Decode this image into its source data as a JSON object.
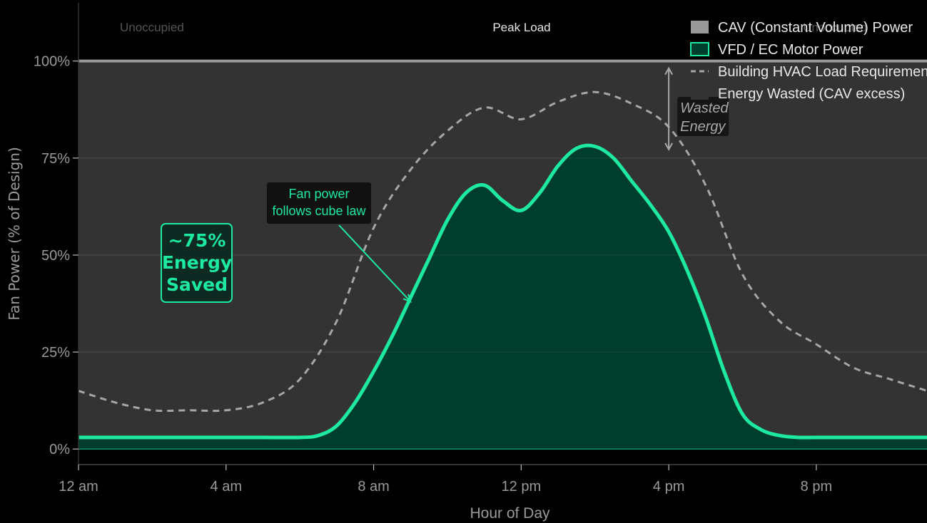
{
  "chart_data": {
    "type": "area",
    "xlabel": "Hour of Day",
    "ylabel": "Fan Power (% of Design)",
    "xlim": [
      0,
      23
    ],
    "ylim": [
      -4,
      115
    ],
    "x_ticks": [
      {
        "x": 0,
        "label": "12 am"
      },
      {
        "x": 4,
        "label": "4 am"
      },
      {
        "x": 8,
        "label": "8 am"
      },
      {
        "x": 12,
        "label": "12 pm"
      },
      {
        "x": 16,
        "label": "4 pm"
      },
      {
        "x": 20,
        "label": "8 pm"
      }
    ],
    "y_ticks": [
      {
        "y": 0,
        "label": "0%"
      },
      {
        "y": 25,
        "label": "25%"
      },
      {
        "y": 50,
        "label": "50%"
      },
      {
        "y": 75,
        "label": "75%"
      },
      {
        "y": 100,
        "label": "100%"
      }
    ],
    "grid": true,
    "legend_placement": "top-right",
    "series": [
      {
        "name": "CAV (Constant Volume) Power",
        "style": "solid",
        "color": "#999999",
        "points": [
          [
            0,
            100
          ],
          [
            23,
            100
          ]
        ]
      },
      {
        "name": "VFD / EC Motor Power",
        "style": "filled",
        "color": "#1de9a0",
        "fill": "#003d2c",
        "points": [
          [
            0,
            3
          ],
          [
            1,
            3
          ],
          [
            2,
            3
          ],
          [
            3,
            3
          ],
          [
            4,
            3
          ],
          [
            5,
            3
          ],
          [
            6,
            3
          ],
          [
            6.5,
            3.5
          ],
          [
            7,
            6
          ],
          [
            7.5,
            12
          ],
          [
            8,
            20
          ],
          [
            8.5,
            29
          ],
          [
            9,
            39
          ],
          [
            9.5,
            49
          ],
          [
            10,
            59
          ],
          [
            10.5,
            66
          ],
          [
            11,
            68
          ],
          [
            11.5,
            64
          ],
          [
            12,
            61.5
          ],
          [
            12.5,
            66
          ],
          [
            13,
            73
          ],
          [
            13.5,
            77.5
          ],
          [
            14,
            78
          ],
          [
            14.5,
            75
          ],
          [
            15,
            69
          ],
          [
            15.5,
            63
          ],
          [
            16,
            56
          ],
          [
            16.5,
            46
          ],
          [
            17,
            34
          ],
          [
            17.5,
            20
          ],
          [
            18,
            9
          ],
          [
            18.5,
            5
          ],
          [
            19,
            3.5
          ],
          [
            19.5,
            3
          ],
          [
            20,
            3
          ],
          [
            21,
            3
          ],
          [
            22,
            3
          ],
          [
            23,
            3
          ]
        ]
      },
      {
        "name": "Building HVAC Load Requirement",
        "style": "dashed",
        "color": "#a6a6a6",
        "points": [
          [
            0,
            15
          ],
          [
            1,
            12
          ],
          [
            2,
            10
          ],
          [
            3,
            10
          ],
          [
            4,
            10
          ],
          [
            5,
            12
          ],
          [
            6,
            18
          ],
          [
            7,
            33
          ],
          [
            8,
            57
          ],
          [
            9,
            72
          ],
          [
            10,
            82
          ],
          [
            11,
            88
          ],
          [
            12,
            85
          ],
          [
            13,
            89.5
          ],
          [
            14,
            92
          ],
          [
            15,
            89
          ],
          [
            16,
            83
          ],
          [
            17,
            68
          ],
          [
            18,
            45
          ],
          [
            19,
            33
          ],
          [
            20,
            27
          ],
          [
            21,
            21
          ],
          [
            22,
            18
          ],
          [
            23,
            15
          ]
        ]
      },
      {
        "name": "Energy Wasted (CAV excess)",
        "style": "region",
        "color": "#333333",
        "points": []
      }
    ],
    "regions": [
      {
        "label": "Unoccupied",
        "color": "#555555"
      },
      {
        "label": "Peak Load",
        "color": "#e6e6e6"
      },
      {
        "label": "Unoccupied",
        "color": "#555555"
      }
    ],
    "annotations": [
      {
        "text": "Wasted\nEnergy",
        "x": 16,
        "from_y": 100,
        "to_y": 75
      },
      {
        "text": "Fan power\nfollows cube law",
        "arrow_to": [
          9,
          38
        ]
      },
      {
        "text": "~75%\nEnergy\nSaved",
        "color": "#1de9a0"
      }
    ]
  }
}
